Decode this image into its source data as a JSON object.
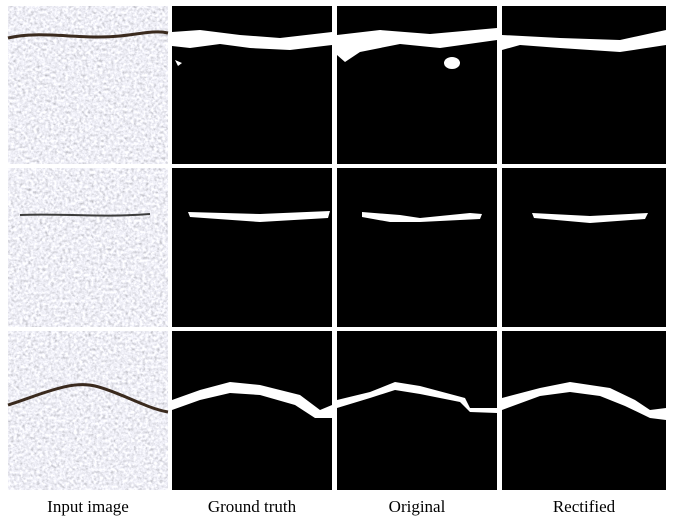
{
  "figure": {
    "column_labels": [
      "Input image",
      "Ground truth",
      "Original",
      "Rectified"
    ]
  }
}
